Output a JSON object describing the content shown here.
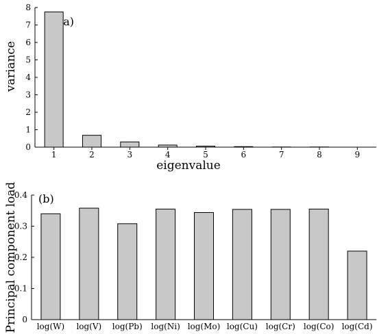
{
  "chart_data": [
    {
      "type": "bar",
      "panel_label": "(a)",
      "xlabel": "eigenvalue",
      "ylabel": "variance",
      "categories": [
        "1",
        "2",
        "3",
        "4",
        "5",
        "6",
        "7",
        "8",
        "9"
      ],
      "values": [
        7.75,
        0.68,
        0.3,
        0.12,
        0.06,
        0.03,
        0.01,
        0.01,
        0.0
      ],
      "ylim": [
        0,
        8
      ],
      "yticks": [
        "0",
        "1",
        "2",
        "3",
        "4",
        "5",
        "6",
        "7",
        "8"
      ],
      "grid": false
    },
    {
      "type": "bar",
      "panel_label": "(b)",
      "xlabel": "",
      "ylabel": "Principal component load",
      "categories": [
        "log(W)",
        "log(V)",
        "log(Pb)",
        "log(Ni)",
        "log(Mo)",
        "log(Cu)",
        "log(Cr)",
        "log(Co)",
        "log(Cd)"
      ],
      "values": [
        0.34,
        0.358,
        0.308,
        0.355,
        0.344,
        0.354,
        0.354,
        0.355,
        0.22
      ],
      "ylim": [
        0,
        0.4
      ],
      "yticks": [
        "0",
        "0.1",
        "0.2",
        "0.3",
        "0.4"
      ],
      "grid": false
    }
  ]
}
